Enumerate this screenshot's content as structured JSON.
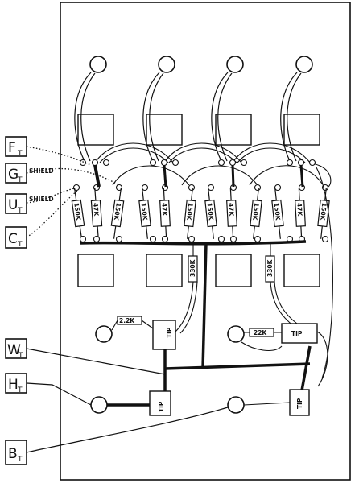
{
  "labels": {
    "F": {
      "letter": "F",
      "sub": "T"
    },
    "G": {
      "letter": "G",
      "sub": "T"
    },
    "U": {
      "letter": "U",
      "sub": "T"
    },
    "C": {
      "letter": "C",
      "sub": "T"
    },
    "W": {
      "letter": "W",
      "sub": "T"
    },
    "H": {
      "letter": "H",
      "sub": "T"
    },
    "B": {
      "letter": "B",
      "sub": "T"
    }
  },
  "shield_labels": [
    "SHIELD",
    "SHIELD"
  ],
  "resistor_labels": [
    "150K",
    "47K",
    "150K",
    "150K",
    "47K",
    "150K",
    "150K",
    "47K",
    "150K",
    "150K",
    "47K",
    "150K"
  ],
  "vertical_resistors": [
    "330K",
    "330K"
  ],
  "small_resistors": [
    "2.2K",
    "22K"
  ],
  "jack_tip_labels": [
    "TIP",
    "TIP",
    "TIP",
    "TIP"
  ],
  "colors": {
    "ink": "#111111",
    "paper": "#ffffff"
  }
}
